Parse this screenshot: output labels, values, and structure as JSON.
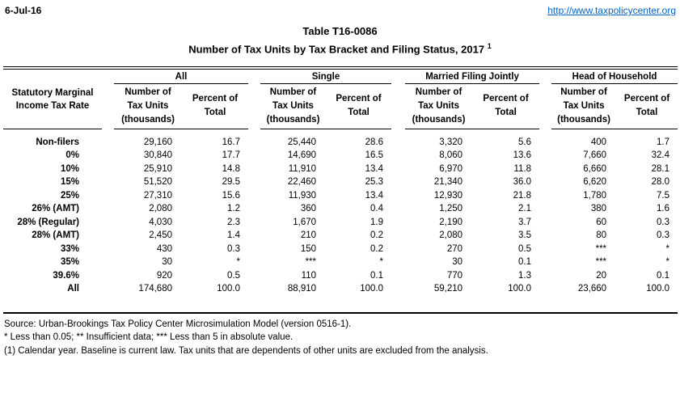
{
  "page": {
    "date": "6-Jul-16",
    "url": "http://www.taxpolicycenter.org",
    "title_line1": "Table T16-0086",
    "title_line2": "Number of Tax Units by Tax Bracket and Filing Status, 2017",
    "title_superscript": "1"
  },
  "table": {
    "row_header": "Statutory Marginal\nIncome Tax Rate",
    "groups": [
      {
        "label": "All"
      },
      {
        "label": "Single"
      },
      {
        "label": "Married Filing Jointly"
      },
      {
        "label": "Head of Household"
      }
    ],
    "subheaders": {
      "number": "Number of\nTax Units\n(thousands)",
      "percent": "Percent of\nTotal"
    },
    "rows": [
      {
        "label": "Non-filers",
        "values": [
          "29,160",
          "16.7",
          "25,440",
          "28.6",
          "3,320",
          "5.6",
          "400",
          "1.7"
        ]
      },
      {
        "label": "0%",
        "values": [
          "30,840",
          "17.7",
          "14,690",
          "16.5",
          "8,060",
          "13.6",
          "7,660",
          "32.4"
        ]
      },
      {
        "label": "10%",
        "values": [
          "25,910",
          "14.8",
          "11,910",
          "13.4",
          "6,970",
          "11.8",
          "6,660",
          "28.1"
        ]
      },
      {
        "label": "15%",
        "values": [
          "51,520",
          "29.5",
          "22,460",
          "25.3",
          "21,340",
          "36.0",
          "6,620",
          "28.0"
        ]
      },
      {
        "label": "25%",
        "values": [
          "27,310",
          "15.6",
          "11,930",
          "13.4",
          "12,930",
          "21.8",
          "1,780",
          "7.5"
        ]
      },
      {
        "label": "26% (AMT)",
        "values": [
          "2,080",
          "1.2",
          "360",
          "0.4",
          "1,250",
          "2.1",
          "380",
          "1.6"
        ]
      },
      {
        "label": "28% (Regular)",
        "values": [
          "4,030",
          "2.3",
          "1,670",
          "1.9",
          "2,190",
          "3.7",
          "60",
          "0.3"
        ]
      },
      {
        "label": "28% (AMT)",
        "values": [
          "2,450",
          "1.4",
          "210",
          "0.2",
          "2,080",
          "3.5",
          "80",
          "0.3"
        ]
      },
      {
        "label": "33%",
        "values": [
          "430",
          "0.3",
          "150",
          "0.2",
          "270",
          "0.5",
          "***",
          "*"
        ]
      },
      {
        "label": "35%",
        "values": [
          "30",
          "*",
          "***",
          "*",
          "30",
          "0.1",
          "***",
          "*"
        ]
      },
      {
        "label": "39.6%",
        "values": [
          "920",
          "0.5",
          "110",
          "0.1",
          "770",
          "1.3",
          "20",
          "0.1"
        ]
      },
      {
        "label": "All",
        "values": [
          "174,680",
          "100.0",
          "88,910",
          "100.0",
          "59,210",
          "100.0",
          "23,660",
          "100.0"
        ]
      }
    ]
  },
  "footer": {
    "source": "Source: Urban-Brookings Tax Policy Center Microsimulation Model (version 0516-1).",
    "symbol_notes": "* Less than 0.05; ** Insufficient data; *** Less than 5 in absolute value.",
    "note_1": "(1) Calendar year. Baseline is current law. Tax units that are dependents of other units are excluded from the analysis."
  },
  "colors": {
    "link": "#0563C1",
    "text": "#000000",
    "background": "#FFFFFF"
  }
}
